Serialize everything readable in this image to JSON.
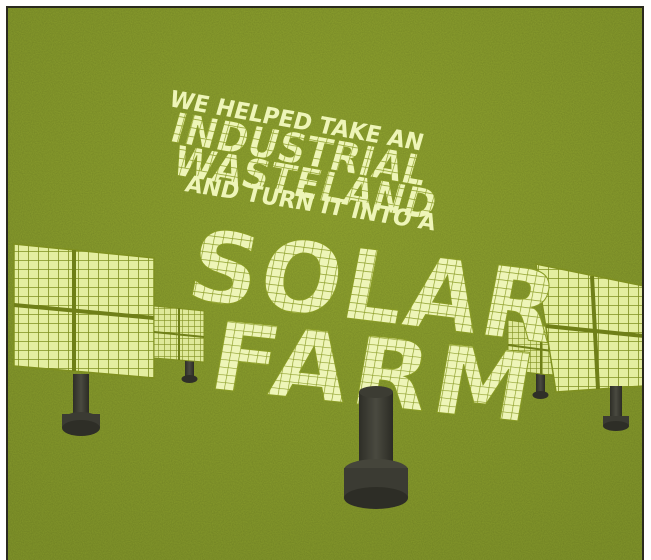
{
  "poster": {
    "headline": {
      "line1": "WE HELPED TAKE AN",
      "line2": "INDUSTRIAL",
      "line3": "WASTELAND",
      "line4": "AND TURN IT INTO A",
      "line5": "SOLAR",
      "line6": "FARM"
    }
  },
  "colors": {
    "background": "#8ea12c",
    "panel": "#e6f0a4",
    "panel_grid": "#7d8d1e",
    "text": "#edf5b6",
    "post": "#3d3d34",
    "frame": "#2a2a1e"
  },
  "icons": [
    "solar-panel-icon",
    "solar-panel-post-icon"
  ]
}
